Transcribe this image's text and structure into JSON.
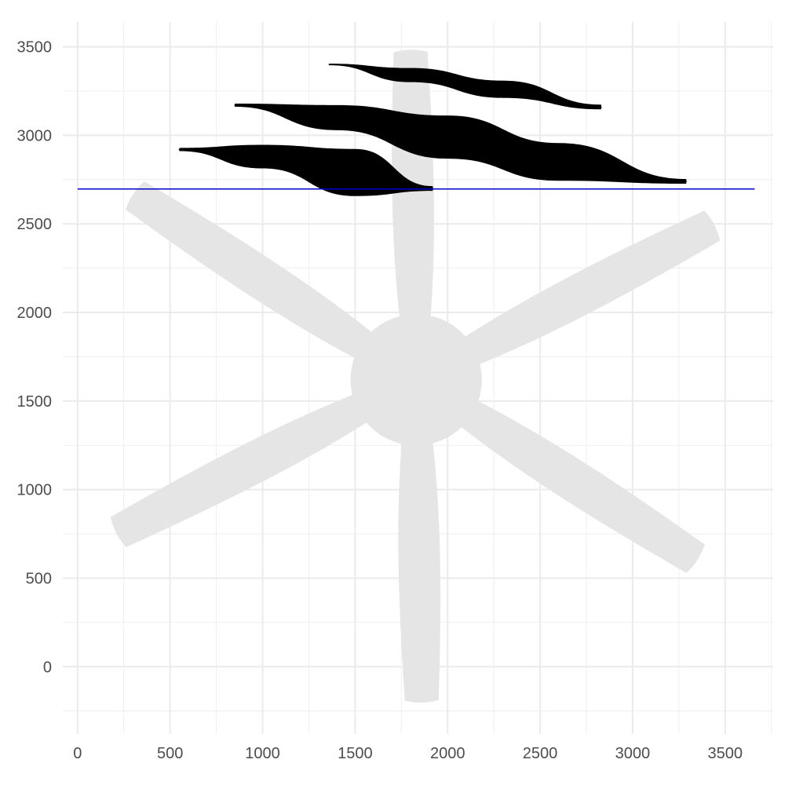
{
  "chart_data": {
    "type": "line",
    "title": "",
    "xlabel": "",
    "ylabel": "",
    "xlim": [
      -80,
      3760
    ],
    "ylim": [
      -380,
      3640
    ],
    "grid": true,
    "legend": "none",
    "x_ticks": [
      0,
      500,
      1000,
      1500,
      2000,
      2500,
      3000,
      3500
    ],
    "y_ticks": [
      0,
      500,
      1000,
      1500,
      2000,
      2500,
      3000,
      3500
    ],
    "x_tick_labels": [
      "0",
      "500",
      "1000",
      "1500",
      "2000",
      "2500",
      "3000",
      "3500"
    ],
    "y_tick_labels": [
      "0",
      "500",
      "1000",
      "1500",
      "2000",
      "2500",
      "3000",
      "3500"
    ],
    "background_shape": {
      "kind": "six-blade propeller",
      "color": "#e5e5e5",
      "hub": {
        "center": [
          1830,
          1620
        ],
        "radius": 355
      },
      "blade_tips": [
        [
          1800,
          3470
        ],
        [
          3430,
          2490
        ],
        [
          3340,
          610
        ],
        [
          1860,
          -190
        ],
        [
          220,
          760
        ],
        [
          310,
          2660
        ]
      ]
    },
    "horizontal_line": {
      "y": 2697,
      "x_range": [
        0,
        3660
      ],
      "color": "#0000cd"
    },
    "series": [
      {
        "color": "#000000",
        "points": [
          [
            1360,
            3400
          ],
          [
            1800,
            3340
          ],
          [
            2300,
            3260
          ],
          [
            2830,
            3160
          ]
        ],
        "thickness": [
          2,
          18,
          22,
          6
        ]
      },
      {
        "color": "#000000",
        "points": [
          [
            850,
            3170
          ],
          [
            1400,
            3100
          ],
          [
            2000,
            2990
          ],
          [
            2600,
            2850
          ],
          [
            3290,
            2740
          ]
        ],
        "thickness": [
          4,
          32,
          55,
          48,
          6
        ]
      },
      {
        "color": "#000000",
        "points": [
          [
            550,
            2920
          ],
          [
            1000,
            2880
          ],
          [
            1500,
            2790
          ],
          [
            1920,
            2700
          ]
        ],
        "thickness": [
          4,
          30,
          60,
          6
        ]
      }
    ]
  }
}
